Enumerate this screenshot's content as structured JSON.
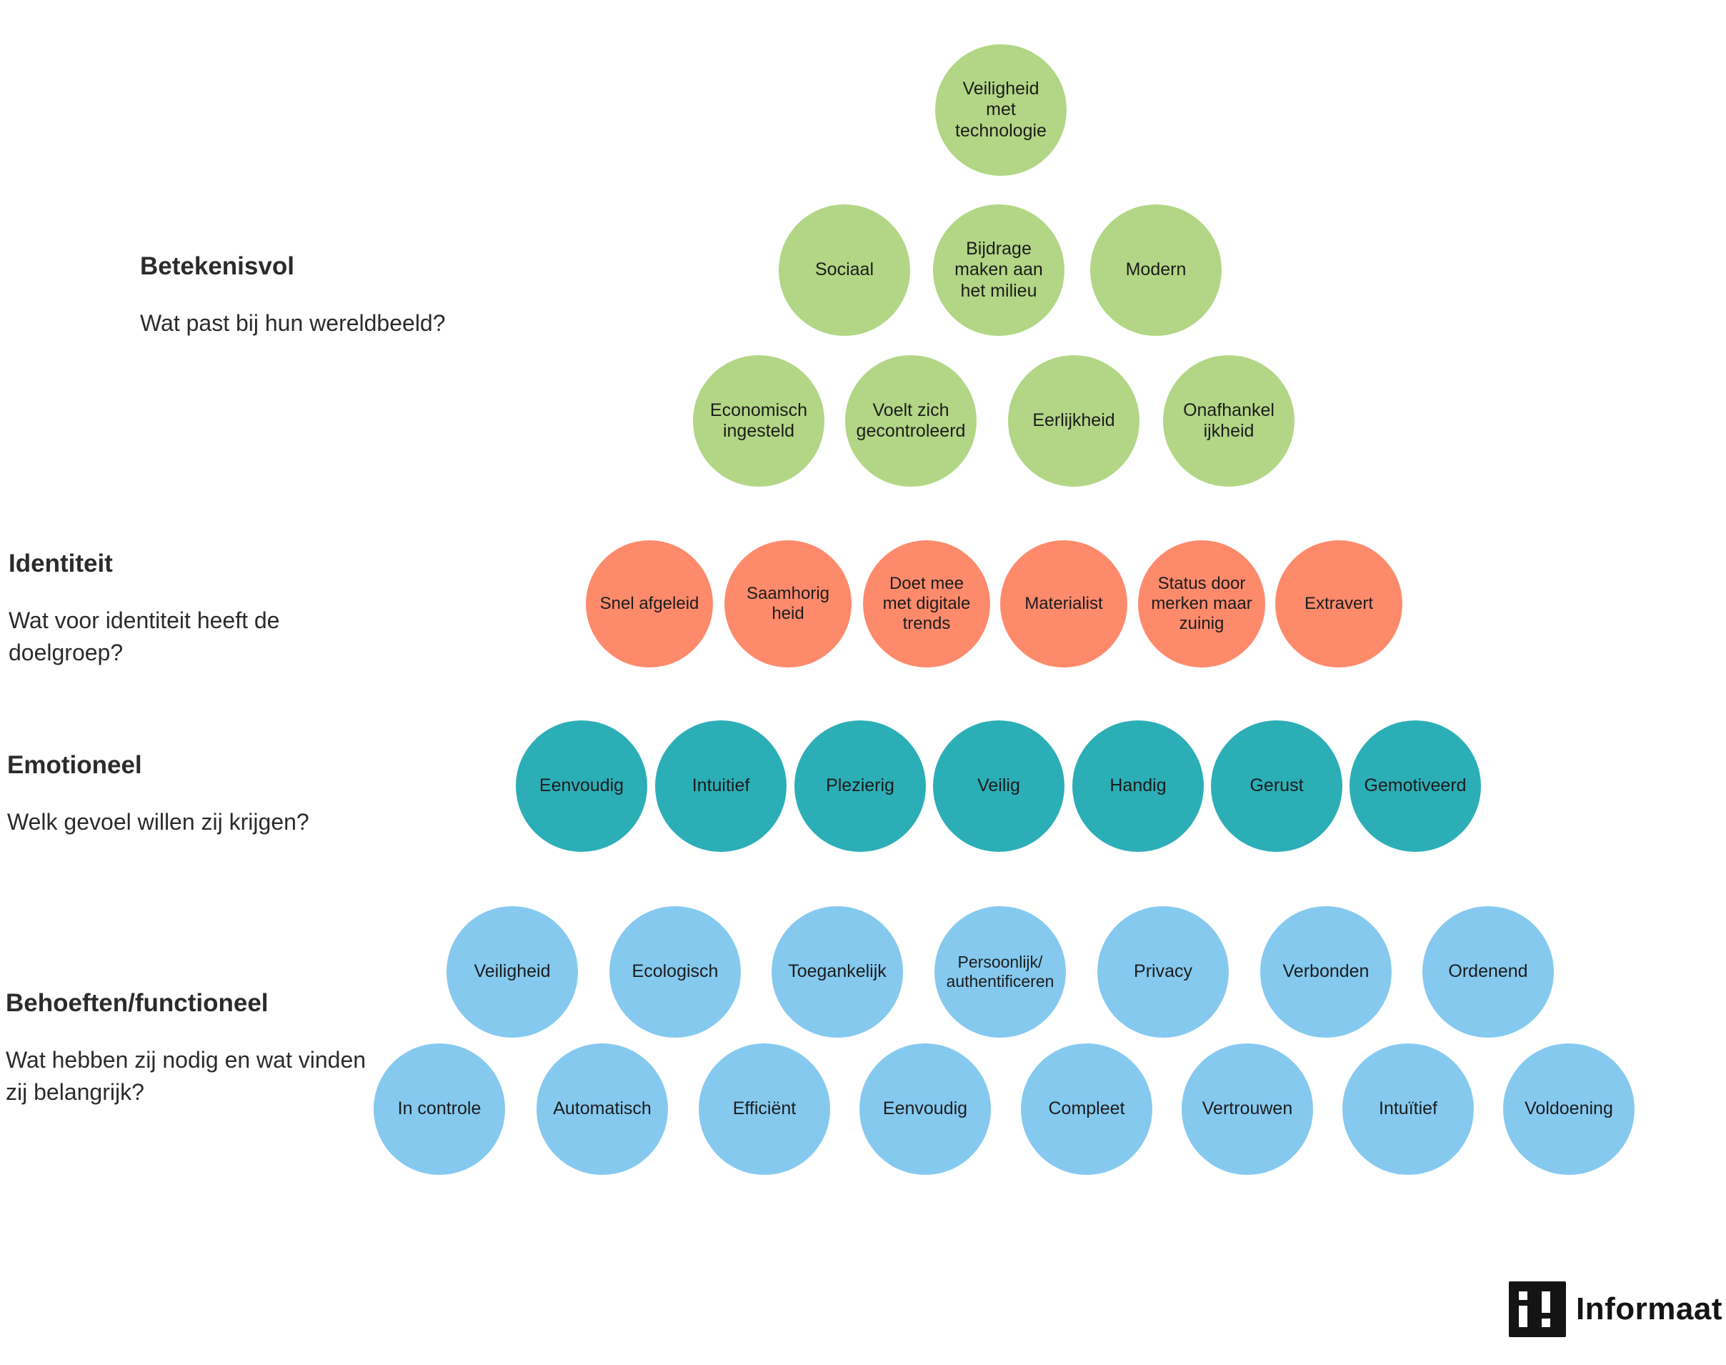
{
  "levels": [
    {
      "id": "betekenisvol",
      "title": "Betekenisvol",
      "question": "Wat past bij hun wereldbeeld?",
      "color": "#b2d685",
      "rows": [
        [
          "Veiligheid\nmet\ntechnologie"
        ],
        [
          "Sociaal",
          "Bijdrage\nmaken aan\nhet milieu",
          "Modern"
        ],
        [
          "Economisch\ningesteld",
          "Voelt zich\ngecontroleerd",
          "Eerlijkheid",
          "Onafhankel\nijkheid"
        ]
      ]
    },
    {
      "id": "identiteit",
      "title": "Identiteit",
      "question": "Wat voor identiteit heeft de doelgroep?",
      "color": "#fe8a6c",
      "rows": [
        [
          "Snel afgeleid",
          "Saamhorig\nheid",
          "Doet mee\nmet digitale\ntrends",
          "Materialist",
          "Status door\nmerken maar\nzuinig",
          "Extravert"
        ]
      ]
    },
    {
      "id": "emotioneel",
      "title": "Emotioneel",
      "question": "Welk gevoel willen zij krijgen?",
      "color": "#2caeb6",
      "rows": [
        [
          "Eenvoudig",
          "Intuitief",
          "Plezierig",
          "Veilig",
          "Handig",
          "Gerust",
          "Gemotiveerd"
        ]
      ]
    },
    {
      "id": "behoeften",
      "title": "Behoeften/functioneel",
      "question": "Wat hebben zij nodig en wat vinden zij belangrijk?",
      "color": "#85c9ef",
      "rows": [
        [
          "Veiligheid",
          "Ecologisch",
          "Toegankelijk",
          "Persoonlijk/\nauthentificeren",
          "Privacy",
          "Verbonden",
          "Ordenend"
        ],
        [
          "In controle",
          "Automatisch",
          "Efficiënt",
          "Eenvoudig",
          "Compleet",
          "Vertrouwen",
          "Intuïtief",
          "Voldoening"
        ]
      ]
    }
  ],
  "logo": {
    "text": "Informaat"
  }
}
